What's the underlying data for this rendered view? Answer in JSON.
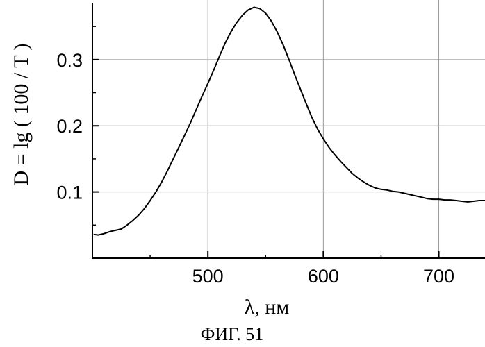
{
  "chart_data": {
    "type": "line",
    "title": "",
    "xlabel": "λ, нм",
    "ylabel": "D = lg ( 100 / T )",
    "caption": "ФИГ. 51",
    "xlim": [
      400,
      740
    ],
    "ylim": [
      0.0,
      0.39
    ],
    "xticks": [
      500,
      600,
      700
    ],
    "yticks": [
      0.1,
      0.2,
      0.3
    ],
    "xtick_labels": [
      "500",
      "600",
      "700"
    ],
    "ytick_labels": [
      "0.1",
      "0.2",
      "0.3"
    ],
    "grid": true,
    "color": "#000000",
    "series": [
      {
        "x": [
          401,
          405,
          410,
          415,
          420,
          425,
          430,
          435,
          440,
          445,
          450,
          455,
          460,
          465,
          470,
          475,
          480,
          485,
          490,
          495,
          500,
          505,
          510,
          515,
          520,
          525,
          530,
          535,
          540,
          545,
          550,
          555,
          560,
          565,
          570,
          575,
          580,
          585,
          590,
          595,
          600,
          605,
          610,
          615,
          620,
          625,
          630,
          635,
          640,
          645,
          650,
          655,
          660,
          665,
          670,
          675,
          680,
          685,
          690,
          695,
          700,
          705,
          710,
          715,
          720,
          725,
          730,
          735,
          740
        ],
        "y": [
          0.036,
          0.035,
          0.037,
          0.04,
          0.042,
          0.044,
          0.05,
          0.057,
          0.065,
          0.075,
          0.087,
          0.1,
          0.115,
          0.132,
          0.15,
          0.168,
          0.186,
          0.205,
          0.225,
          0.245,
          0.264,
          0.284,
          0.305,
          0.325,
          0.342,
          0.356,
          0.367,
          0.375,
          0.379,
          0.377,
          0.37,
          0.358,
          0.342,
          0.323,
          0.301,
          0.278,
          0.256,
          0.234,
          0.213,
          0.195,
          0.18,
          0.167,
          0.156,
          0.146,
          0.137,
          0.128,
          0.121,
          0.115,
          0.11,
          0.106,
          0.104,
          0.103,
          0.101,
          0.1,
          0.098,
          0.096,
          0.094,
          0.092,
          0.09,
          0.089,
          0.089,
          0.088,
          0.088,
          0.087,
          0.086,
          0.085,
          0.086,
          0.087,
          0.087
        ]
      }
    ]
  }
}
